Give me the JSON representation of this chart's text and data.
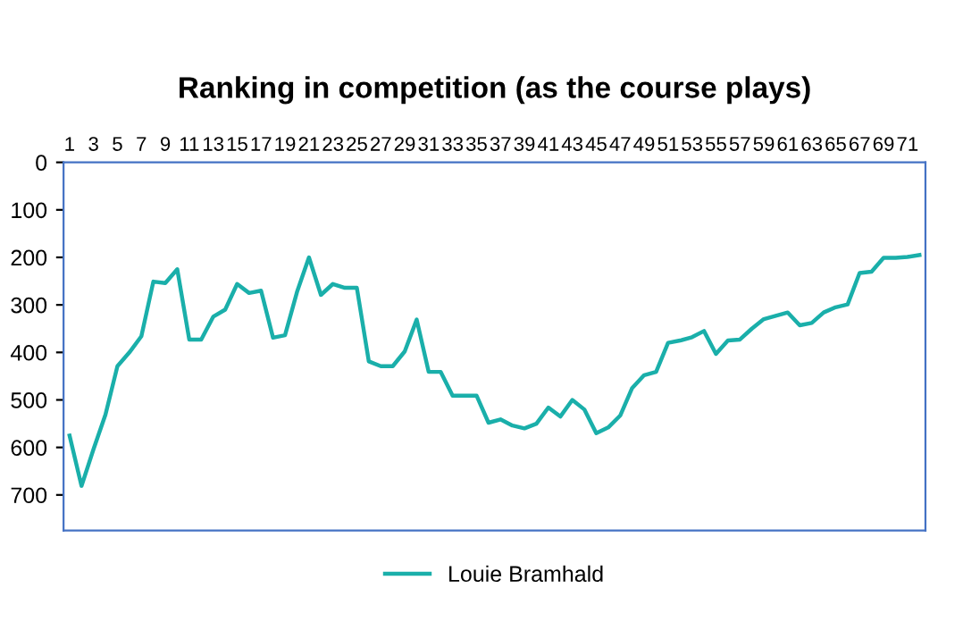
{
  "chart_data": {
    "type": "line",
    "title": "Ranking in competition (as the course plays)",
    "categories": [
      "1",
      null,
      "3",
      null,
      "5",
      null,
      "7",
      null,
      "9",
      null,
      "11",
      null,
      "13",
      null,
      "15",
      null,
      "17",
      null,
      "19",
      null,
      "21",
      null,
      "23",
      null,
      "25",
      null,
      "27",
      null,
      "29",
      null,
      "31",
      null,
      "33",
      null,
      "35",
      null,
      "37",
      null,
      "39",
      null,
      "41",
      null,
      "43",
      null,
      "45",
      null,
      "47",
      null,
      "49",
      null,
      "51",
      null,
      "53",
      null,
      "55",
      null,
      "57",
      null,
      "59",
      null,
      "61",
      null,
      "63",
      null,
      "65",
      null,
      "67",
      null,
      "69",
      null,
      "71",
      null
    ],
    "series": [
      {
        "name": "Louie Bramhald",
        "color": "#1aafaa",
        "values": [
          575,
          681,
          604,
          531,
          429,
          400,
          366,
          251,
          254,
          225,
          373,
          373,
          325,
          310,
          256,
          275,
          270,
          369,
          364,
          273,
          200,
          279,
          256,
          264,
          264,
          419,
          429,
          429,
          398,
          331,
          441,
          441,
          491,
          491,
          491,
          548,
          541,
          554,
          560,
          550,
          516,
          535,
          500,
          520,
          570,
          558,
          533,
          475,
          448,
          441,
          380,
          375,
          368,
          355,
          403,
          375,
          373,
          350,
          330,
          323,
          316,
          343,
          338,
          316,
          305,
          299,
          233,
          230,
          201,
          201,
          199,
          195
        ]
      }
    ],
    "ylim": [
      775,
      0
    ],
    "yticks": [
      0,
      100,
      200,
      300,
      400,
      500,
      600,
      700
    ],
    "grid": false,
    "legend": "bottom",
    "marker": "none",
    "line_style": "solid"
  }
}
